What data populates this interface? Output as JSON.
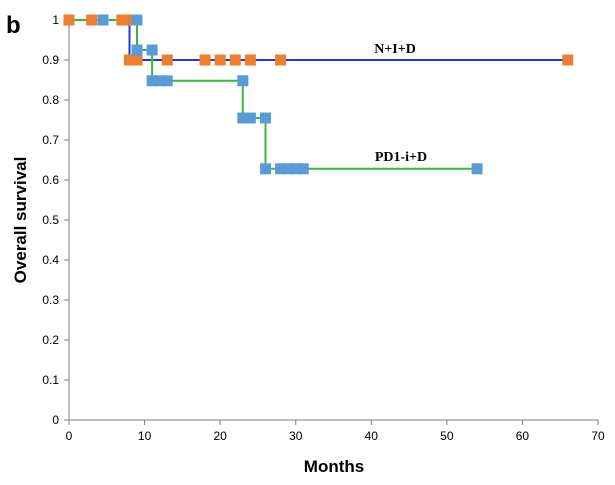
{
  "panel_label": "b",
  "chart_data": {
    "type": "line",
    "step": true,
    "xlabel": "Months",
    "ylabel": "Overall survival",
    "xlim": [
      0,
      70
    ],
    "ylim": [
      0,
      1
    ],
    "xticks": [
      "0",
      "10",
      "20",
      "30",
      "40",
      "50",
      "60",
      "70"
    ],
    "yticks": [
      "0",
      "0.1",
      "0.2",
      "0.3",
      "0.4",
      "0.5",
      "0.6",
      "0.7",
      "0.8",
      "0.9",
      "1"
    ],
    "grid": false,
    "series": [
      {
        "name": "N+I+D",
        "line_color": "#1f3fbf",
        "marker_color": "#ed7d31",
        "steps": [
          [
            0,
            1.0
          ],
          [
            8,
            1.0
          ],
          [
            8,
            0.9
          ],
          [
            66,
            0.9
          ]
        ],
        "markers": [
          [
            0,
            1.0
          ],
          [
            3,
            1.0
          ],
          [
            7,
            1.0
          ],
          [
            8,
            1.0
          ],
          [
            8,
            0.9
          ],
          [
            9,
            0.9
          ],
          [
            13,
            0.9
          ],
          [
            18,
            0.9
          ],
          [
            20,
            0.9
          ],
          [
            22,
            0.9
          ],
          [
            24,
            0.9
          ],
          [
            28,
            0.9
          ],
          [
            66,
            0.9
          ]
        ]
      },
      {
        "name": "PD1-i+D",
        "line_color": "#3cb83c",
        "marker_color": "#5b9bd5",
        "steps": [
          [
            0,
            1.0
          ],
          [
            9,
            1.0
          ],
          [
            9,
            0.925
          ],
          [
            11,
            0.925
          ],
          [
            11,
            0.848
          ],
          [
            23,
            0.848
          ],
          [
            23,
            0.755
          ],
          [
            26,
            0.755
          ],
          [
            26,
            0.628
          ],
          [
            54,
            0.628
          ]
        ],
        "markers": [
          [
            4.5,
            1.0
          ],
          [
            9,
            1.0
          ],
          [
            9,
            0.925
          ],
          [
            11,
            0.925
          ],
          [
            11,
            0.848
          ],
          [
            12,
            0.848
          ],
          [
            13,
            0.848
          ],
          [
            23,
            0.848
          ],
          [
            23,
            0.755
          ],
          [
            24,
            0.755
          ],
          [
            26,
            0.755
          ],
          [
            26,
            0.628
          ],
          [
            28,
            0.628
          ],
          [
            29,
            0.628
          ],
          [
            30,
            0.628
          ],
          [
            31,
            0.628
          ],
          [
            54,
            0.628
          ]
        ]
      }
    ]
  }
}
